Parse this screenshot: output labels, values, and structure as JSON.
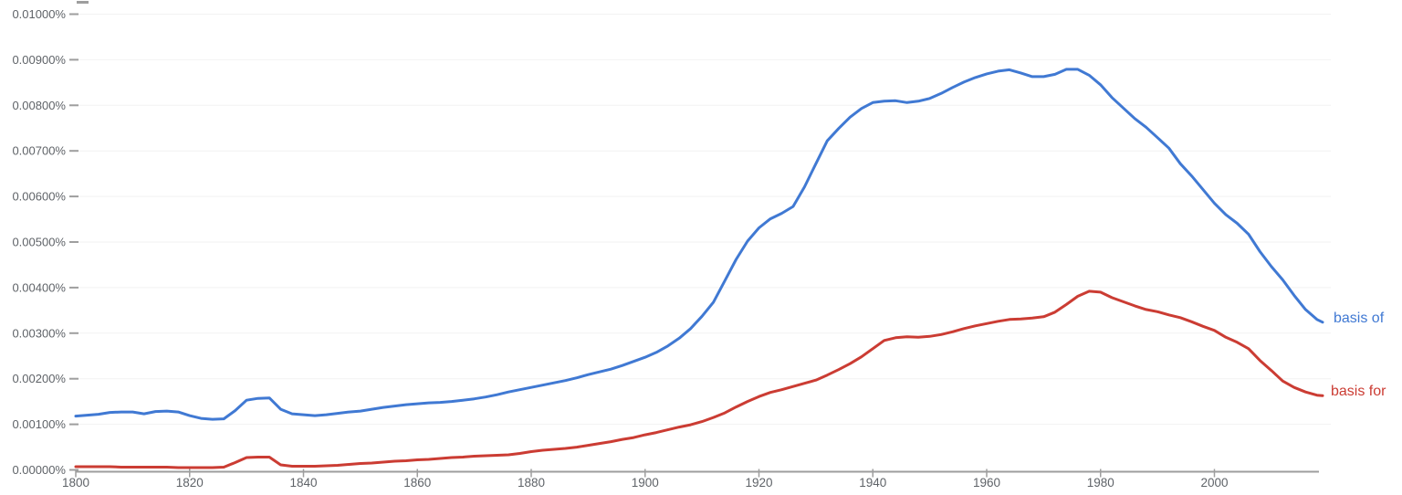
{
  "chart_data": {
    "type": "line",
    "title": "",
    "xlabel": "",
    "ylabel": "",
    "legend_position": "end-of-line-labels",
    "grid": true,
    "colors": {
      "axis_text": "#5f6368",
      "axis_line": "#9e9e9e",
      "tick_mark": "#9e9e9e",
      "gridline": "#f2f2f2",
      "background": "#ffffff"
    },
    "x_axis": {
      "range": [
        1800,
        2019
      ],
      "tick_years": [
        1800,
        1820,
        1840,
        1860,
        1880,
        1900,
        1920,
        1940,
        1960,
        1980,
        2000
      ],
      "tick_labels": [
        "1800",
        "1820",
        "1840",
        "1860",
        "1880",
        "1900",
        "1920",
        "1940",
        "1960",
        "1980",
        "2000"
      ]
    },
    "y_axis": {
      "range_pct": [
        0,
        0.01
      ],
      "tick_step_pct": 0.001,
      "tick_labels": [
        "0.00000%",
        "0.00100%",
        "0.00200%",
        "0.00300%",
        "0.00400%",
        "0.00500%",
        "0.00600%",
        "0.00700%",
        "0.00800%",
        "0.00900%",
        "0.01000%"
      ]
    },
    "x": [
      1800,
      1802,
      1804,
      1806,
      1808,
      1810,
      1812,
      1814,
      1816,
      1818,
      1820,
      1822,
      1824,
      1826,
      1828,
      1830,
      1832,
      1834,
      1836,
      1838,
      1840,
      1842,
      1844,
      1846,
      1848,
      1850,
      1852,
      1854,
      1856,
      1858,
      1860,
      1862,
      1864,
      1866,
      1868,
      1870,
      1872,
      1874,
      1876,
      1878,
      1880,
      1882,
      1884,
      1886,
      1888,
      1890,
      1892,
      1894,
      1896,
      1898,
      1900,
      1902,
      1904,
      1906,
      1908,
      1910,
      1912,
      1914,
      1916,
      1918,
      1920,
      1922,
      1924,
      1926,
      1928,
      1930,
      1932,
      1934,
      1936,
      1938,
      1940,
      1942,
      1944,
      1946,
      1948,
      1950,
      1952,
      1954,
      1956,
      1958,
      1960,
      1962,
      1964,
      1966,
      1968,
      1970,
      1972,
      1974,
      1976,
      1978,
      1980,
      1982,
      1984,
      1986,
      1988,
      1990,
      1992,
      1994,
      1996,
      1998,
      2000,
      2002,
      2004,
      2006,
      2008,
      2010,
      2012,
      2014,
      2016,
      2018,
      2019
    ],
    "series": [
      {
        "label": "basis of",
        "color": "#4079d3",
        "values_pct": [
          0.00118,
          0.0012,
          0.00122,
          0.00126,
          0.00127,
          0.00127,
          0.00123,
          0.00128,
          0.00129,
          0.00127,
          0.00119,
          0.00113,
          0.00111,
          0.00112,
          0.0013,
          0.00153,
          0.00157,
          0.00158,
          0.00133,
          0.00123,
          0.00121,
          0.00119,
          0.00121,
          0.00124,
          0.00127,
          0.00129,
          0.00133,
          0.00137,
          0.0014,
          0.00143,
          0.00145,
          0.00147,
          0.00148,
          0.0015,
          0.00153,
          0.00156,
          0.0016,
          0.00165,
          0.00171,
          0.00176,
          0.00181,
          0.00186,
          0.00191,
          0.00196,
          0.00202,
          0.00209,
          0.00215,
          0.00221,
          0.00229,
          0.00238,
          0.00247,
          0.00258,
          0.00272,
          0.00289,
          0.0031,
          0.00337,
          0.00368,
          0.00415,
          0.00462,
          0.00502,
          0.00531,
          0.00551,
          0.00563,
          0.00578,
          0.00621,
          0.00672,
          0.00722,
          0.00749,
          0.00774,
          0.00793,
          0.00806,
          0.00809,
          0.0081,
          0.00806,
          0.00809,
          0.00815,
          0.00826,
          0.00839,
          0.00851,
          0.00861,
          0.00869,
          0.00875,
          0.00878,
          0.00871,
          0.00863,
          0.00863,
          0.00868,
          0.00879,
          0.00879,
          0.00866,
          0.00845,
          0.00817,
          0.00794,
          0.00771,
          0.00752,
          0.00729,
          0.00706,
          0.00672,
          0.00645,
          0.00615,
          0.00585,
          0.0056,
          0.00541,
          0.00517,
          0.00479,
          0.00446,
          0.00417,
          0.00383,
          0.00352,
          0.0033,
          0.00324
        ]
      },
      {
        "label": "basis for",
        "color": "#cb3c33",
        "values_pct": [
          7e-05,
          7e-05,
          7e-05,
          7e-05,
          6e-05,
          6e-05,
          6e-05,
          6e-05,
          6e-05,
          5e-05,
          5e-05,
          5e-05,
          5e-05,
          6e-05,
          0.00016,
          0.00027,
          0.00028,
          0.00028,
          0.00011,
          8e-05,
          8e-05,
          8e-05,
          9e-05,
          0.0001,
          0.00012,
          0.00014,
          0.00015,
          0.00017,
          0.00019,
          0.0002,
          0.00022,
          0.00023,
          0.00025,
          0.00027,
          0.00028,
          0.0003,
          0.00031,
          0.00032,
          0.00033,
          0.00036,
          0.0004,
          0.00043,
          0.00045,
          0.00047,
          0.0005,
          0.00054,
          0.00058,
          0.00062,
          0.00067,
          0.00071,
          0.00077,
          0.00082,
          0.00088,
          0.00094,
          0.00099,
          0.00106,
          0.00115,
          0.00125,
          0.00138,
          0.0015,
          0.00161,
          0.0017,
          0.00176,
          0.00183,
          0.0019,
          0.00197,
          0.00208,
          0.0022,
          0.00233,
          0.00248,
          0.00266,
          0.00284,
          0.0029,
          0.00292,
          0.00291,
          0.00293,
          0.00297,
          0.00303,
          0.0031,
          0.00316,
          0.00321,
          0.00326,
          0.0033,
          0.00331,
          0.00333,
          0.00336,
          0.00346,
          0.00363,
          0.00381,
          0.00392,
          0.0039,
          0.00378,
          0.00369,
          0.0036,
          0.00352,
          0.00347,
          0.0034,
          0.00334,
          0.00325,
          0.00315,
          0.00306,
          0.00291,
          0.0028,
          0.00266,
          0.0024,
          0.00218,
          0.00195,
          0.00181,
          0.00171,
          0.00164,
          0.00163
        ]
      }
    ]
  }
}
